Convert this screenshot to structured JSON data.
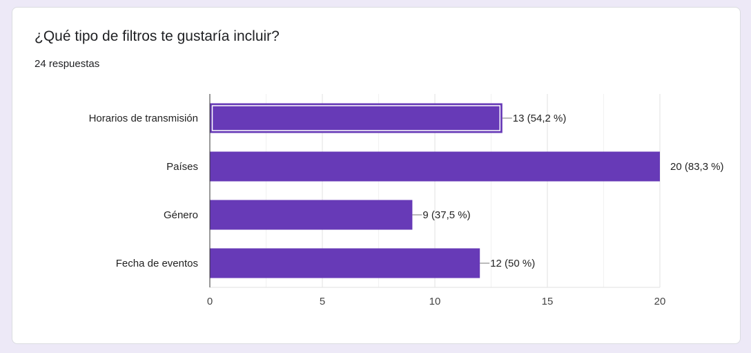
{
  "question": {
    "title": "¿Qué tipo de filtros te gustaría incluir?",
    "responses": "24 respuestas"
  },
  "colors": {
    "bar": "#673ab7",
    "background": "#ede9f7",
    "card": "#ffffff"
  },
  "chart_data": {
    "type": "bar",
    "orientation": "horizontal",
    "categories": [
      "Horarios de transmisión",
      "Países",
      "Género",
      "Fecha de eventos"
    ],
    "values": [
      13,
      20,
      9,
      12
    ],
    "labels": [
      "13 (54,2 %)",
      "20 (83,3 %)",
      "9 (37,5 %)",
      "12 (50 %)"
    ],
    "xlim": [
      0,
      20
    ],
    "xticks": [
      0,
      5,
      10,
      15,
      20
    ],
    "grid": true,
    "highlighted_index": 0
  }
}
